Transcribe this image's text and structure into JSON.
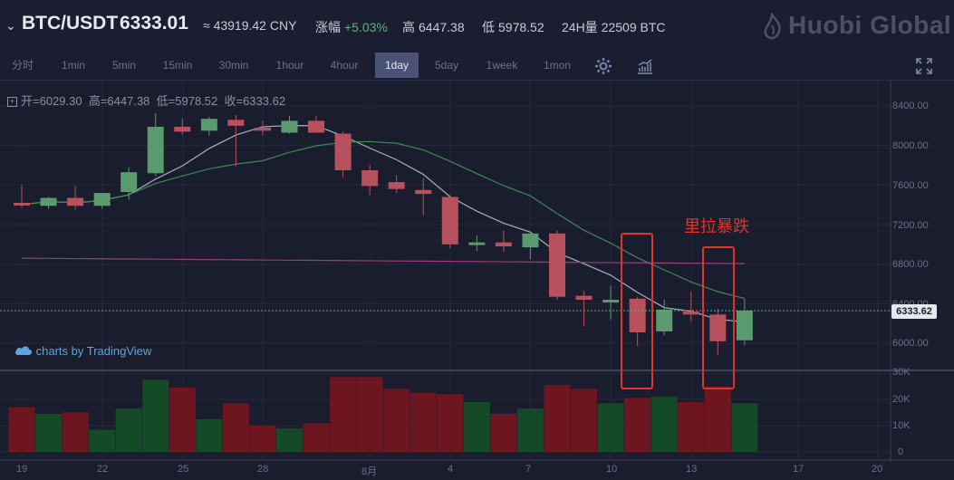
{
  "header": {
    "pair": "BTC/USDT",
    "price": "6333.01",
    "cny": "≈ 43919.42 CNY",
    "change_label": "涨幅",
    "change_value": "+5.03%",
    "high_label": "高",
    "high_value": "6447.38",
    "low_label": "低",
    "low_value": "5978.52",
    "vol_label": "24H量",
    "vol_value": "22509 BTC",
    "brand": "Huobi Global"
  },
  "toolbar": {
    "intervals": [
      "分时",
      "1min",
      "5min",
      "15min",
      "30min",
      "1hour",
      "4hour",
      "1day",
      "5day",
      "1week",
      "1mon"
    ],
    "active": "1day"
  },
  "ohlc": {
    "open_label": "开=",
    "open": "6029.30",
    "high_label": "高=",
    "high": "6447.38",
    "low_label": "低=",
    "low": "5978.52",
    "close_label": "收=",
    "close": "6333.62"
  },
  "watermark": "charts by TradingView",
  "annotation": "里拉暴跌",
  "current_price_label": "6333.62",
  "colors": {
    "up": "#5a9a6e",
    "down": "#b8515e",
    "annotation_box": "#e0342a",
    "ma_white": "#a7aec4",
    "ma_purple": "#9c3d7a",
    "ma_green": "#3e8a4f",
    "background": "#1a1d2e"
  },
  "chart_data": {
    "type": "candlestick",
    "y_axis_labels": [
      "8400.00",
      "8000.00",
      "7600.00",
      "7200.00",
      "6800.00",
      "6400.00",
      "6000.00"
    ],
    "volume_axis_labels": [
      "30K",
      "20K",
      "10K",
      "0"
    ],
    "x_axis_labels": [
      "19",
      "22",
      "25",
      "28",
      "8月",
      "4",
      "7",
      "10",
      "13",
      "17",
      "20"
    ],
    "candles": [
      {
        "o": 7420,
        "h": 7600,
        "l": 7370,
        "c": 7400,
        "v": 17000
      },
      {
        "o": 7390,
        "h": 7480,
        "l": 7360,
        "c": 7470,
        "v": 14500
      },
      {
        "o": 7470,
        "h": 7590,
        "l": 7350,
        "c": 7390,
        "v": 15000
      },
      {
        "o": 7390,
        "h": 7520,
        "l": 7360,
        "c": 7520,
        "v": 8500
      },
      {
        "o": 7530,
        "h": 7780,
        "l": 7450,
        "c": 7730,
        "v": 16500
      },
      {
        "o": 7720,
        "h": 8330,
        "l": 7690,
        "c": 8190,
        "v": 27500
      },
      {
        "o": 8190,
        "h": 8270,
        "l": 8110,
        "c": 8140,
        "v": 24500
      },
      {
        "o": 8150,
        "h": 8290,
        "l": 8100,
        "c": 8270,
        "v": 12500
      },
      {
        "o": 8260,
        "h": 8310,
        "l": 7790,
        "c": 8200,
        "v": 18500
      },
      {
        "o": 8180,
        "h": 8250,
        "l": 8100,
        "c": 8150,
        "v": 10000
      },
      {
        "o": 8130,
        "h": 8300,
        "l": 8120,
        "c": 8250,
        "v": 9000
      },
      {
        "o": 8250,
        "h": 8300,
        "l": 8130,
        "c": 8130,
        "v": 11000
      },
      {
        "o": 8120,
        "h": 8140,
        "l": 7680,
        "c": 7750,
        "v": 28500
      },
      {
        "o": 7750,
        "h": 7800,
        "l": 7500,
        "c": 7590,
        "v": 28500
      },
      {
        "o": 7630,
        "h": 7700,
        "l": 7520,
        "c": 7560,
        "v": 24000
      },
      {
        "o": 7550,
        "h": 7670,
        "l": 7290,
        "c": 7510,
        "v": 22500
      },
      {
        "o": 7480,
        "h": 7500,
        "l": 6960,
        "c": 7000,
        "v": 22000
      },
      {
        "o": 7020,
        "h": 7090,
        "l": 6930,
        "c": 7020,
        "v": 19000
      },
      {
        "o": 7020,
        "h": 7140,
        "l": 6920,
        "c": 6980,
        "v": 14500
      },
      {
        "o": 6970,
        "h": 7100,
        "l": 6850,
        "c": 7110,
        "v": 16500
      },
      {
        "o": 7110,
        "h": 7140,
        "l": 6440,
        "c": 6470,
        "v": 25500
      },
      {
        "o": 6480,
        "h": 6530,
        "l": 6170,
        "c": 6440,
        "v": 24000
      },
      {
        "o": 6430,
        "h": 6580,
        "l": 6240,
        "c": 6440,
        "v": 18500
      },
      {
        "o": 6450,
        "h": 6470,
        "l": 5970,
        "c": 6110,
        "v": 20500
      },
      {
        "o": 6120,
        "h": 6440,
        "l": 6080,
        "c": 6340,
        "v": 21000
      },
      {
        "o": 6320,
        "h": 6520,
        "l": 6220,
        "c": 6290,
        "v": 19000
      },
      {
        "o": 6290,
        "h": 6350,
        "l": 5880,
        "c": 6020,
        "v": 25000
      },
      {
        "o": 6030,
        "h": 6450,
        "l": 5980,
        "c": 6330,
        "v": 18500
      }
    ]
  }
}
